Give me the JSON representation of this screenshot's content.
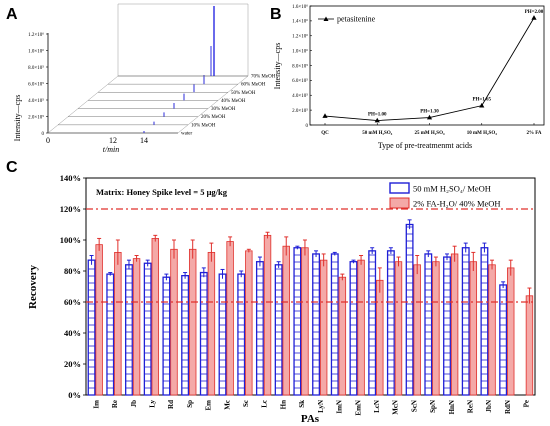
{
  "panel_a": {
    "letter": "A",
    "ylabel": "Intensity—cps",
    "xlabel": "t/min",
    "yticks": [
      "0",
      "2.0×10⁵",
      "4.0×10⁵",
      "6.0×10⁵",
      "8.0×10⁵",
      "1.0×10⁶",
      "1.2×10⁶"
    ],
    "xticks": [
      "0",
      "12",
      "14"
    ],
    "traces": [
      "water",
      "10% MeOH",
      "20% MeOH",
      "30% MeOH",
      "40% MeOH",
      "50% MeOH",
      "60% MeOH",
      "70% MeOH"
    ]
  },
  "panel_b": {
    "letter": "B",
    "legend": "petasitenine",
    "ylabel": "Intensity—cps",
    "xlabel": "Type of pre-treatmenmt acids",
    "yticks": [
      "0",
      "2.0×10⁵",
      "4.0×10⁵",
      "6.0×10⁵",
      "8.0×10⁵",
      "1.0×10⁶",
      "1.2×10⁶",
      "1.4×10⁶",
      "1.6×10⁶"
    ],
    "categories": [
      "QC",
      "50 mM H₂SO₄",
      "25 mM H₂SO₄",
      "10 mM H₂SO₄",
      "2% FA"
    ],
    "values": [
      120000,
      60000,
      100000,
      260000,
      1440000
    ],
    "point_labels": [
      "",
      "PH=1.00",
      "PH=1.30",
      "PH=1.65",
      "PH=2.00"
    ]
  },
  "chart_data": {
    "type": "bar",
    "letter": "C",
    "annotation": "Matrix: Honey  Spike level = 5 μg/kg",
    "xlabel": "PAs",
    "ylabel": "Recovery",
    "ylim": [
      0,
      140
    ],
    "yticks": [
      "0%",
      "20%",
      "40%",
      "60%",
      "80%",
      "100%",
      "120%",
      "140%"
    ],
    "reference_lines": [
      120,
      60
    ],
    "categories": [
      "Im",
      "Re",
      "Jb",
      "Ly",
      "Rd",
      "Sp",
      "Em",
      "Mc",
      "Sc",
      "Lc",
      "Hn",
      "Sk",
      "LyN",
      "ImN",
      "EmN",
      "LcN",
      "McN",
      "ScN",
      "SpN",
      "HnN",
      "ReN",
      "JbN",
      "RdN",
      "Pe"
    ],
    "series": [
      {
        "name": "50 mM H₂SO₄/ MeOH",
        "color": "#1f1fd6",
        "values": [
          87,
          78,
          84,
          85,
          76,
          77,
          79,
          78,
          78,
          86,
          84,
          95,
          91,
          91,
          86,
          93,
          93,
          110,
          91,
          89,
          95,
          95,
          71,
          null
        ],
        "errors": [
          3,
          1,
          3,
          2,
          2,
          2,
          3,
          3,
          2,
          3,
          2,
          1,
          2,
          1,
          1,
          2,
          2,
          3,
          2,
          2,
          3,
          3,
          2,
          null
        ]
      },
      {
        "name": "2% FA-H₂O/ 40% MeOH",
        "color": "#e0302c",
        "values": [
          97,
          92,
          88,
          101,
          94,
          94,
          92,
          99,
          93,
          103,
          96,
          95,
          87,
          76,
          87,
          74,
          86,
          84,
          86,
          91,
          86,
          84,
          82,
          64
        ],
        "errors": [
          4,
          8,
          2,
          2,
          6,
          6,
          6,
          3,
          1,
          2,
          6,
          5,
          4,
          2,
          3,
          8,
          3,
          6,
          3,
          5,
          6,
          3,
          5,
          5
        ]
      }
    ]
  }
}
